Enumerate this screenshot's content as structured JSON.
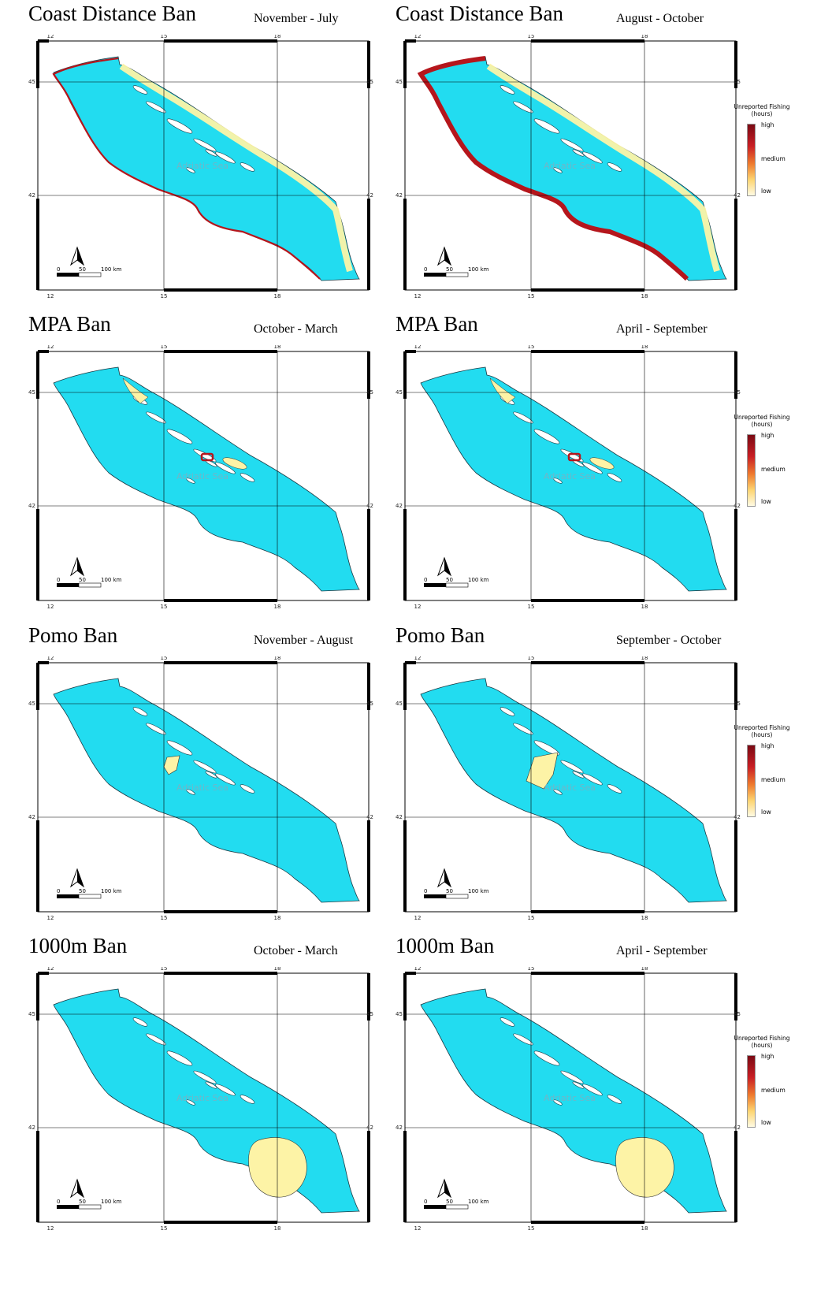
{
  "panels": [
    {
      "title": "Coast Distance Ban",
      "period": "November - July",
      "variant": "coast-thin"
    },
    {
      "title": "Coast Distance Ban",
      "period": "August - October",
      "variant": "coast-thick"
    },
    {
      "title": "MPA Ban",
      "period": "October - March",
      "variant": "mpa"
    },
    {
      "title": "MPA Ban",
      "period": "April - September",
      "variant": "mpa"
    },
    {
      "title": "Pomo Ban",
      "period": "November - August",
      "variant": "pomo-small"
    },
    {
      "title": "Pomo Ban",
      "period": "September - October",
      "variant": "pomo-large"
    },
    {
      "title": "1000m Ban",
      "period": "October - March",
      "variant": "deep"
    },
    {
      "title": "1000m Ban",
      "period": "April - September",
      "variant": "deep"
    }
  ],
  "map": {
    "sea_label": "Adriatic Sea",
    "lon_ticks": [
      "12",
      "15",
      "18"
    ],
    "lat_ticks": [
      "45",
      "42"
    ],
    "scale_labels": [
      "0",
      "50",
      "100 km"
    ],
    "sea_color": "#22dcf0",
    "low_color": "#fdf3a6",
    "high_color": "#b5161c"
  },
  "legend": {
    "title": "Unreported Fishing (hours)",
    "high": "high",
    "medium": "medium",
    "low": "low"
  }
}
